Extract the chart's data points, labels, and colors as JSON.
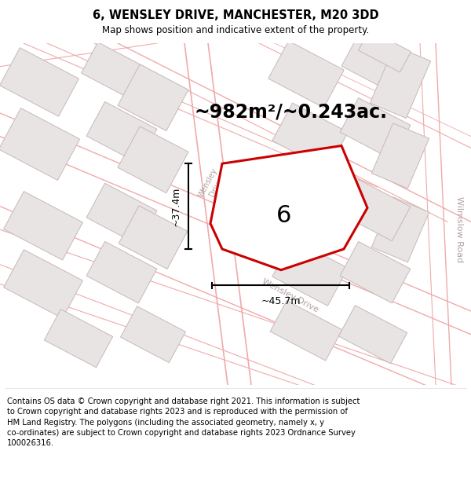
{
  "title": "6, WENSLEY DRIVE, MANCHESTER, M20 3DD",
  "subtitle": "Map shows position and indicative extent of the property.",
  "area_label": "~982m²/~0.243ac.",
  "plot_number": "6",
  "width_label": "~45.7m",
  "height_label": "~37.4m",
  "map_bg": "#f8f4f4",
  "building_fill": "#e8e4e4",
  "building_edge": "#c8b8b8",
  "road_line_color": "#f0aaaa",
  "plot_fill": "#ffffff",
  "plot_edge": "#cc0000",
  "plot_edge_width": 2.2,
  "street_label_color": "#b0a0a0",
  "footer_text_line1": "Contains OS data © Crown copyright and database right 2021. This information is subject",
  "footer_text_line2": "to Crown copyright and database rights 2023 and is reproduced with the permission of",
  "footer_text_line3": "HM Land Registry. The polygons (including the associated geometry, namely x, y",
  "footer_text_line4": "co-ordinates) are subject to Crown copyright and database rights 2023 Ordnance Survey",
  "footer_text_line5": "100026316.",
  "fig_width": 6.0,
  "fig_height": 6.25,
  "dpi": 100
}
